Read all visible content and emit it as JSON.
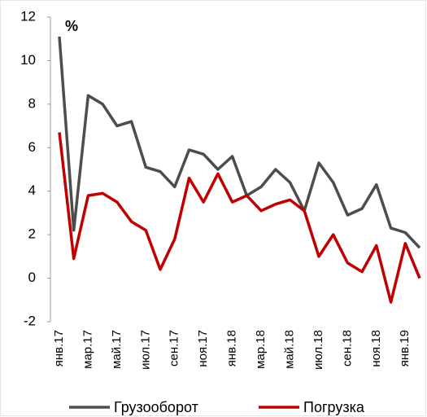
{
  "chart_data": {
    "type": "line",
    "annotation": "%",
    "categories": [
      "янв.17",
      null,
      "мар.17",
      null,
      "май.17",
      null,
      "июл.17",
      null,
      "сен.17",
      null,
      "ноя.17",
      null,
      "янв.18",
      null,
      "мар.18",
      null,
      "май.18",
      null,
      "июл.18",
      null,
      "сен.18",
      null,
      "ноя.18",
      null,
      "янв.19",
      null
    ],
    "series": [
      {
        "name": "Грузооборот",
        "color": "#4d4d4d",
        "values": [
          11.1,
          2.2,
          8.4,
          8.0,
          7.0,
          7.2,
          5.1,
          4.9,
          4.2,
          5.9,
          5.7,
          5.0,
          5.6,
          3.8,
          4.2,
          5.0,
          4.4,
          3.1,
          5.3,
          4.4,
          2.9,
          3.2,
          4.3,
          2.3,
          2.1,
          1.4
        ]
      },
      {
        "name": "Погрузка",
        "color": "#c00000",
        "values": [
          6.7,
          0.9,
          3.8,
          3.9,
          3.5,
          2.6,
          2.2,
          0.4,
          1.8,
          4.6,
          3.5,
          4.8,
          3.5,
          3.8,
          3.1,
          3.4,
          3.6,
          3.1,
          1.0,
          2.0,
          0.7,
          0.3,
          1.5,
          -1.1,
          1.6,
          0.0
        ]
      }
    ],
    "ylim": [
      -2,
      12
    ],
    "yticks": [
      -2,
      0,
      2,
      4,
      6,
      8,
      10,
      12
    ],
    "legend": "bottom"
  }
}
